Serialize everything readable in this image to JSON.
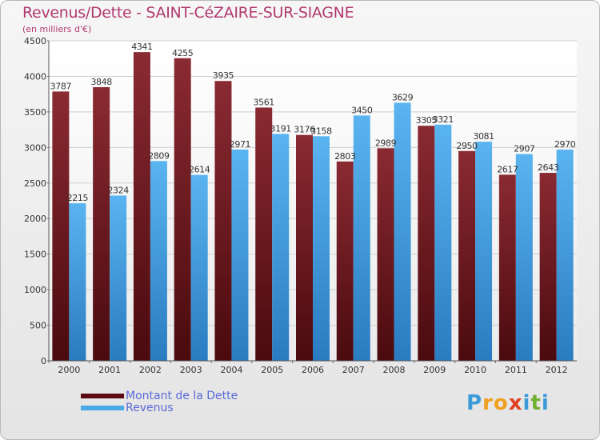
{
  "title": "Revenus/Dette - SAINT-CéZAIRE-SUR-SIAGNE",
  "subtitle": "(en milliers d'€)",
  "logo": {
    "text": "Proxiti",
    "letters": [
      "P",
      "r",
      "o",
      "x",
      "i",
      "t",
      "i"
    ],
    "colors": [
      "#3c9ad8",
      "#f0a020",
      "#f0a020",
      "#e04020",
      "#3c9ad8",
      "#70b030",
      "#3c9ad8"
    ]
  },
  "colors": {
    "dette": "#7a1c24",
    "revenus": "#4aa8e8",
    "title": "#b03a6f",
    "legend_text": "#5a6ad8"
  },
  "chart_data": {
    "type": "bar",
    "categories": [
      "2000",
      "2001",
      "2002",
      "2003",
      "2004",
      "2005",
      "2006",
      "2007",
      "2008",
      "2009",
      "2010",
      "2011",
      "2012"
    ],
    "series": [
      {
        "name": "Montant de la Dette",
        "values": [
          3787,
          3848,
          4341,
          4255,
          3935,
          3561,
          3176,
          2803,
          2989,
          3305,
          2950,
          2617,
          2643
        ],
        "labels": [
          "3787",
          "3848",
          "4341",
          "4255",
          "3935",
          "3561",
          "3176",
          "2803",
          "2989",
          "3305",
          "2950",
          "2617",
          "2643"
        ]
      },
      {
        "name": "Revenus",
        "values": [
          2215,
          2324,
          2809,
          2614,
          2971,
          3191,
          3158,
          3450,
          3629,
          3321,
          3081,
          2907,
          2970
        ],
        "labels": [
          "2215",
          "2324",
          "2809",
          "2614",
          "2971",
          "3191",
          "3158",
          "3450",
          "3629",
          "3321",
          "3081",
          "2907",
          "2970"
        ]
      }
    ],
    "yticks": [
      "0",
      "500",
      "1000",
      "1500",
      "2000",
      "2500",
      "3000",
      "3500",
      "4000",
      "4500"
    ],
    "ylim": [
      0,
      4500
    ],
    "grid": true
  }
}
